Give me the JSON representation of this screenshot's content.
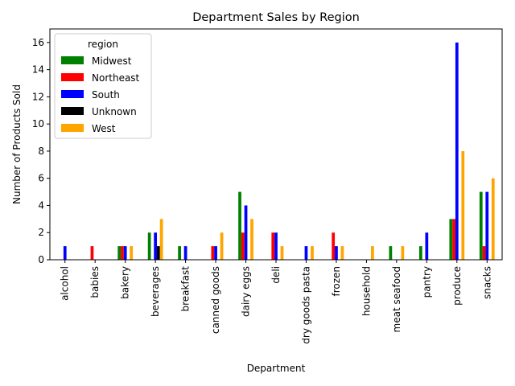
{
  "chart_data": {
    "type": "bar",
    "title": "Department Sales by Region",
    "xlabel": "Department",
    "ylabel": "Number of Products Sold",
    "ylim": [
      0,
      17
    ],
    "yticks": [
      0,
      2,
      4,
      6,
      8,
      10,
      12,
      14,
      16
    ],
    "grid": false,
    "legend": {
      "title": "region",
      "placement": "top-left"
    },
    "categories": [
      "alcohol",
      "babies",
      "bakery",
      "beverages",
      "breakfast",
      "canned goods",
      "dairy eggs",
      "deli",
      "dry goods pasta",
      "frozen",
      "household",
      "meat seafood",
      "pantry",
      "produce",
      "snacks"
    ],
    "series": [
      {
        "name": "Midwest",
        "color": "#008000",
        "values": [
          0,
          0,
          1,
          2,
          1,
          0,
          5,
          0,
          0,
          0,
          0,
          1,
          1,
          3,
          5
        ]
      },
      {
        "name": "Northeast",
        "color": "#ff0000",
        "values": [
          0,
          1,
          1,
          0,
          0,
          1,
          2,
          2,
          0,
          2,
          0,
          0,
          0,
          3,
          1
        ]
      },
      {
        "name": "South",
        "color": "#0000ff",
        "values": [
          1,
          0,
          1,
          2,
          1,
          1,
          4,
          2,
          1,
          1,
          0,
          0,
          2,
          16,
          5
        ]
      },
      {
        "name": "Unknown",
        "color": "#000000",
        "values": [
          0,
          0,
          0,
          1,
          0,
          0,
          0,
          0,
          0,
          0,
          0,
          0,
          0,
          0,
          0
        ]
      },
      {
        "name": "West",
        "color": "#ffa500",
        "values": [
          0,
          0,
          1,
          3,
          0,
          2,
          3,
          1,
          1,
          1,
          1,
          1,
          0,
          8,
          6
        ]
      }
    ]
  }
}
